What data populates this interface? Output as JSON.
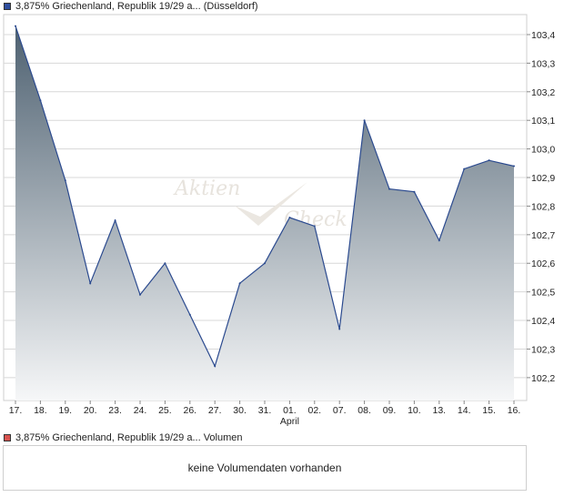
{
  "legend_price": {
    "label": "3,875% Griechenland, Republik 19/29 a... (Düsseldorf)",
    "color": "#2f4f9f"
  },
  "legend_volume": {
    "label": "3,875% Griechenland, Republik 19/29 a... Volumen",
    "color": "#d9534f"
  },
  "watermark": {
    "line1": "Aktien",
    "line2": "Check"
  },
  "volume_message": "keine Volumendaten vorhanden",
  "colors": {
    "line": "#2b4a8f",
    "fill_top": "#4e6171",
    "fill_bottom": "#f6f7f8",
    "grid": "#d8d8d8"
  },
  "chart_data": {
    "type": "area",
    "categories": [
      "17.",
      "18.",
      "19.",
      "20.",
      "23.",
      "24.",
      "25.",
      "26.",
      "27.",
      "30.",
      "31.",
      "01.",
      "02.",
      "07.",
      "08.",
      "09.",
      "10.",
      "13.",
      "14.",
      "15.",
      "16."
    ],
    "month_label": {
      "index": 11,
      "text": "April"
    },
    "series": [
      {
        "values": [
          103.43,
          103.17,
          102.89,
          102.53,
          102.75,
          102.49,
          102.6,
          102.42,
          102.24,
          102.53,
          102.6,
          102.76,
          102.73,
          102.37,
          103.1,
          102.86,
          102.85,
          102.68,
          102.93,
          102.96,
          102.94
        ]
      }
    ],
    "y_ticks": [
      "103,4",
      "103,3",
      "103,2",
      "103,1",
      "103,0",
      "102,9",
      "102,8",
      "102,7",
      "102,6",
      "102,5",
      "102,4",
      "102,3",
      "102,2"
    ],
    "y_tick_values": [
      103.4,
      103.3,
      103.2,
      103.1,
      103.0,
      102.9,
      102.8,
      102.7,
      102.6,
      102.5,
      102.4,
      102.3,
      102.2
    ],
    "ylim": [
      102.12,
      103.47
    ],
    "y_axis_position": "right",
    "grid": true
  }
}
